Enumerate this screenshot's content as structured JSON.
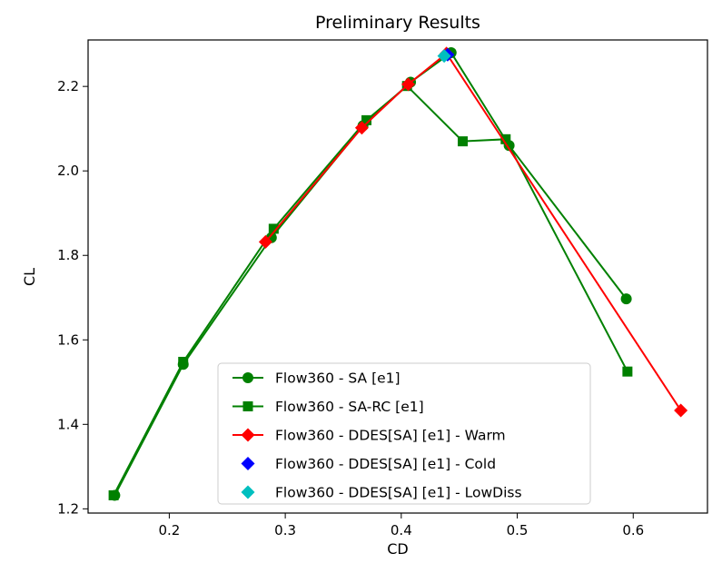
{
  "chart_data": {
    "type": "line",
    "title": "Preliminary Results",
    "xlabel": "CD",
    "ylabel": "CL",
    "xlim": [
      0.13,
      0.664
    ],
    "ylim": [
      1.19,
      2.31
    ],
    "xticks": [
      0.2,
      0.3,
      0.4,
      0.5,
      0.6
    ],
    "yticks": [
      1.2,
      1.4,
      1.6,
      1.8,
      2.0,
      2.2
    ],
    "xtick_labels": [
      "0.2",
      "0.3",
      "0.4",
      "0.5",
      "0.6"
    ],
    "ytick_labels": [
      "1.2",
      "1.4",
      "1.6",
      "1.8",
      "2.0",
      "2.2"
    ],
    "grid": false,
    "legend_position": "lower-center",
    "series": [
      {
        "name": "Flow360 - SA [e1]",
        "color": "#008000",
        "marker": "circle",
        "line": true,
        "x": [
          0.153,
          0.212,
          0.288,
          0.367,
          0.408,
          0.443,
          0.493,
          0.594
        ],
        "y": [
          1.232,
          1.542,
          1.842,
          2.107,
          2.21,
          2.28,
          2.06,
          1.697
        ]
      },
      {
        "name": "Flow360 - SA-RC [e1]",
        "color": "#008000",
        "marker": "square",
        "line": true,
        "x": [
          0.152,
          0.212,
          0.29,
          0.37,
          0.405,
          0.453,
          0.49,
          0.595
        ],
        "y": [
          1.232,
          1.548,
          1.863,
          2.12,
          2.201,
          2.07,
          2.075,
          1.525
        ]
      },
      {
        "name": "Flow360 - DDES[SA] [e1] - Warm",
        "color": "#ff0000",
        "marker": "diamond",
        "line": true,
        "x": [
          0.283,
          0.366,
          0.406,
          0.439,
          0.641
        ],
        "y": [
          1.832,
          2.102,
          2.205,
          2.278,
          1.433
        ]
      },
      {
        "name": "Flow360 - DDES[SA] [e1] - Cold",
        "color": "#0000ff",
        "marker": "diamond",
        "line": false,
        "x": [
          0.44
        ],
        "y": [
          2.275
        ]
      },
      {
        "name": "Flow360 - DDES[SA] [e1] - LowDiss",
        "color": "#00bfbf",
        "marker": "diamond",
        "line": false,
        "x": [
          0.437
        ],
        "y": [
          2.272
        ]
      }
    ]
  }
}
